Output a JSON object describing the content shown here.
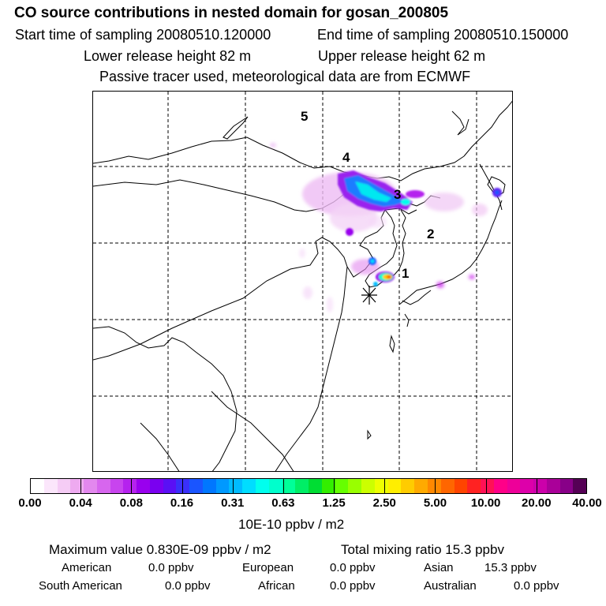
{
  "header": {
    "title": "CO  source contributions in nested domain for gosan_200805",
    "start_time": "Start time of sampling 20080510.120000",
    "end_time": "End time of sampling 20080510.150000",
    "lower_height": "Lower release height   82 m",
    "upper_height": "Upper release height   62 m",
    "tracer_note": "Passive tracer used, meteorological data are from ECMWF"
  },
  "map": {
    "labels": [
      "1",
      "2",
      "3",
      "4",
      "5"
    ],
    "receptor_marker": "asterisk-icon"
  },
  "colorbar": {
    "ticks": [
      "0.00",
      "0.04",
      "0.08",
      "0.16",
      "0.31",
      "0.63",
      "1.25",
      "2.50",
      "5.00",
      "10.00",
      "20.00",
      "40.00"
    ],
    "unit": "10E-10 ppbv / m2",
    "colors": [
      "#ffffff",
      "#fbe6fb",
      "#f5ccf5",
      "#eeaaf0",
      "#e388ee",
      "#d766ee",
      "#c844ee",
      "#b522ee",
      "#9900ee",
      "#7a00f0",
      "#5a10f5",
      "#3a30fa",
      "#1a55ff",
      "#0077ff",
      "#0099ff",
      "#00bbff",
      "#00ddff",
      "#00ffee",
      "#00ffcc",
      "#00ff99",
      "#00ee66",
      "#00dd33",
      "#33ee00",
      "#66ff00",
      "#99ff00",
      "#ccff00",
      "#eeff00",
      "#ffee00",
      "#ffcc00",
      "#ffaa00",
      "#ff8800",
      "#ff6600",
      "#ff4400",
      "#ff2222",
      "#ff1155",
      "#ff0088",
      "#ee0099",
      "#dd00aa",
      "#cc00aa",
      "#aa0099",
      "#880088",
      "#550055"
    ]
  },
  "stats": {
    "max_value": "Maximum value  0.830E-09 ppbv / m2",
    "total_mixing": "Total mixing ratio       15.3 ppbv"
  },
  "regions": {
    "american_label": "American",
    "american_value": "0.0 ppbv",
    "european_label": "European",
    "european_value": "0.0 ppbv",
    "asian_label": "Asian",
    "asian_value": "15.3 ppbv",
    "south_american_label": "South American",
    "south_american_value": "0.0 ppbv",
    "african_label": "African",
    "african_value": "0.0 ppbv",
    "australian_label": "Australian",
    "australian_value": "0.0 ppbv"
  }
}
